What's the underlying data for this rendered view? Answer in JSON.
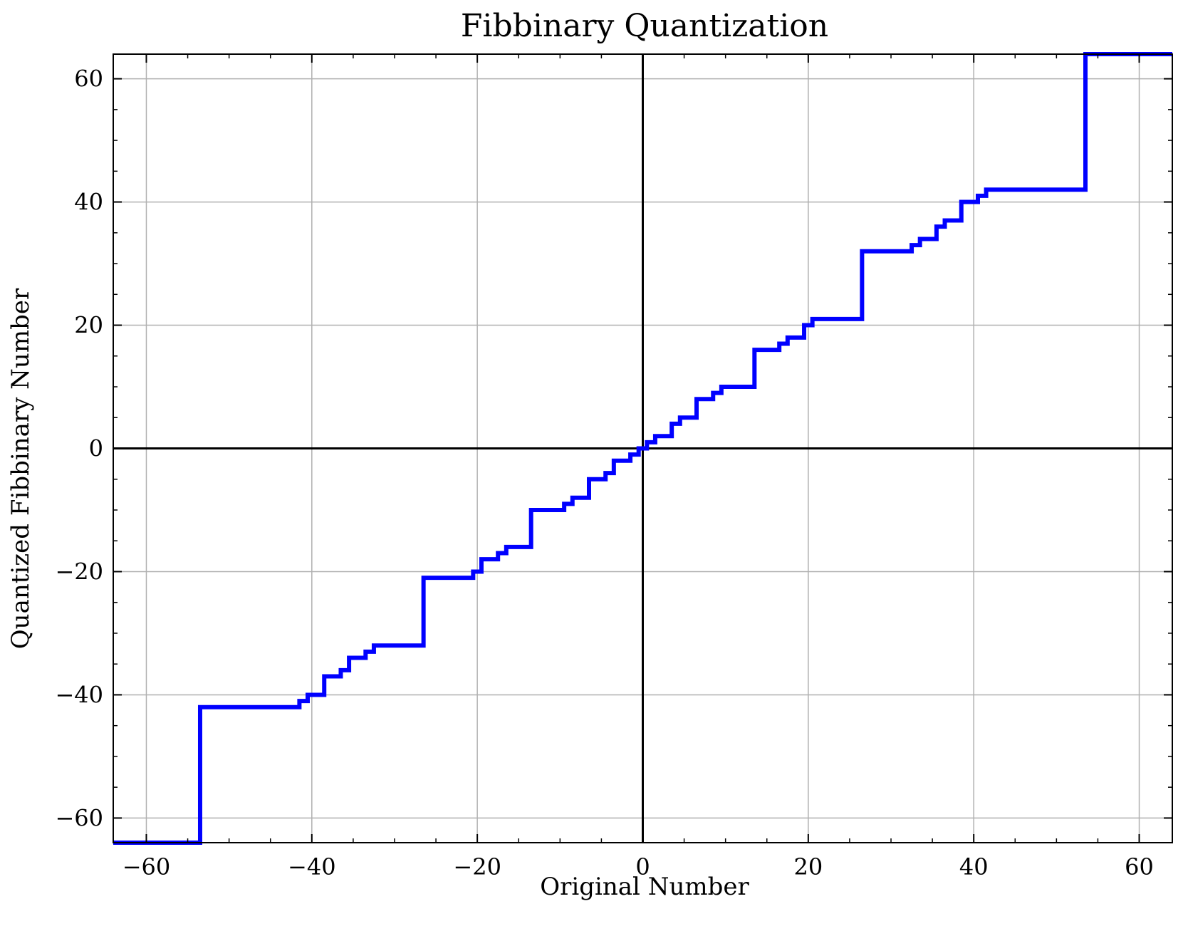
{
  "chart_data": {
    "type": "line",
    "title": "Fibbinary Quantization",
    "xlabel": "Original Number",
    "ylabel": "Quantized Fibbinary Number",
    "xlim": [
      -64,
      64
    ],
    "ylim": [
      -64,
      64
    ],
    "xticks": [
      -60,
      -40,
      -20,
      0,
      20,
      40,
      60
    ],
    "yticks": [
      -60,
      -40,
      -20,
      0,
      20,
      40,
      60
    ],
    "xtick_labels": [
      "−60",
      "−40",
      "−20",
      "0",
      "20",
      "40",
      "60"
    ],
    "ytick_labels": [
      "−60",
      "−40",
      "−20",
      "0",
      "20",
      "40",
      "60"
    ],
    "grid": true,
    "series": [
      {
        "color": "#0000ff",
        "step": "post",
        "x": [
          -64,
          -53.5,
          -41.5,
          -40.5,
          -38.5,
          -36.5,
          -35.5,
          -33.5,
          -32.5,
          -26.5,
          -20.5,
          -19.5,
          -17.5,
          -16.5,
          -13.5,
          -9.5,
          -8.5,
          -6.5,
          -4.5,
          -3.5,
          -1.5,
          -0.5,
          0.5,
          1.5,
          3.5,
          4.5,
          6.5,
          8.5,
          9.5,
          13.5,
          16.5,
          17.5,
          19.5,
          20.5,
          26.5,
          32.5,
          33.5,
          35.5,
          36.5,
          38.5,
          40.5,
          41.5,
          53.5,
          64
        ],
        "y": [
          -64,
          -42,
          -41,
          -40,
          -37,
          -36,
          -34,
          -33,
          -32,
          -21,
          -20,
          -18,
          -17,
          -16,
          -10,
          -9,
          -8,
          -5,
          -4,
          -2,
          -1,
          0,
          1,
          2,
          4,
          5,
          8,
          9,
          10,
          16,
          17,
          18,
          20,
          21,
          32,
          33,
          34,
          36,
          37,
          40,
          41,
          42,
          64,
          64
        ]
      }
    ]
  }
}
